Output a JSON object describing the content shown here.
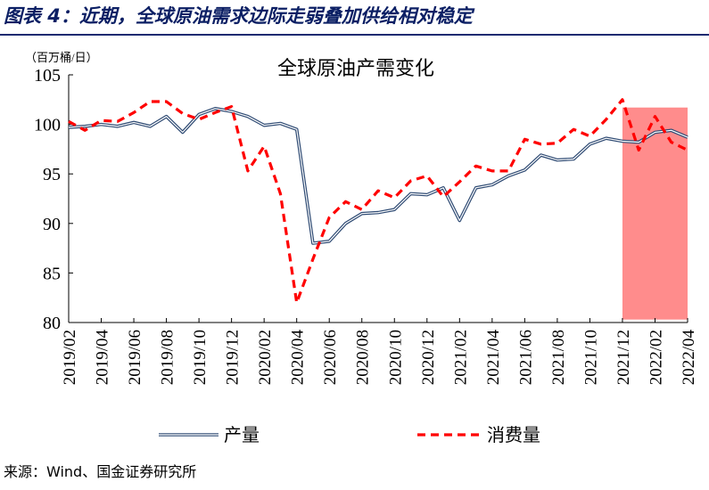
{
  "figure": {
    "title": "图表 4：近期，全球原油需求边际走弱叠加供给相对稳定",
    "source": "来源：Wind、国金证券研究所"
  },
  "colors": {
    "figure_title": "#0b1f64",
    "production": "#2e4a73",
    "consumption": "#ff0000",
    "highlight": "#ff8c8c"
  },
  "chart_data": {
    "type": "line",
    "title": "全球原油产需变化",
    "unit_label": "（百万桶/日）",
    "xlabel": "",
    "ylabel": "",
    "ylim": [
      80,
      105
    ],
    "yticks": [
      80,
      85,
      90,
      95,
      100,
      105
    ],
    "grid": false,
    "legend_position": "bottom",
    "x": [
      "2019/02",
      "2019/03",
      "2019/04",
      "2019/05",
      "2019/06",
      "2019/07",
      "2019/08",
      "2019/09",
      "2019/10",
      "2019/11",
      "2019/12",
      "2020/01",
      "2020/02",
      "2020/03",
      "2020/04",
      "2020/05",
      "2020/06",
      "2020/07",
      "2020/08",
      "2020/09",
      "2020/10",
      "2020/11",
      "2020/12",
      "2021/01",
      "2021/02",
      "2021/03",
      "2021/04",
      "2021/05",
      "2021/06",
      "2021/07",
      "2021/08",
      "2021/09",
      "2021/10",
      "2021/11",
      "2021/12",
      "2022/01",
      "2022/02",
      "2022/03",
      "2022/04"
    ],
    "xtick_labels": [
      "2019/02",
      "2019/04",
      "2019/06",
      "2019/08",
      "2019/10",
      "2019/12",
      "2020/02",
      "2020/04",
      "2020/06",
      "2020/08",
      "2020/10",
      "2020/12",
      "2021/02",
      "2021/04",
      "2021/06",
      "2021/08",
      "2021/10",
      "2021/12",
      "2022/02",
      "2022/04"
    ],
    "series": [
      {
        "name": "产量",
        "style": "double-line",
        "values": [
          99.7,
          99.8,
          100.0,
          99.8,
          100.2,
          99.8,
          100.8,
          99.2,
          101.0,
          101.6,
          101.3,
          100.8,
          99.9,
          100.1,
          99.5,
          88.0,
          88.2,
          90.0,
          91.0,
          91.1,
          91.4,
          93.0,
          92.9,
          93.6,
          90.3,
          93.6,
          93.9,
          94.8,
          95.4,
          96.9,
          96.4,
          96.5,
          98.0,
          98.6,
          98.3,
          98.2,
          99.2,
          99.4,
          98.7
        ]
      },
      {
        "name": "消费量",
        "style": "dashed",
        "values": [
          100.3,
          99.4,
          100.4,
          100.3,
          101.2,
          102.3,
          102.3,
          101.1,
          100.5,
          101.2,
          101.8,
          95.3,
          97.8,
          93.0,
          82.0,
          86.4,
          90.6,
          92.2,
          91.4,
          93.3,
          92.6,
          94.3,
          94.8,
          92.7,
          94.2,
          95.8,
          95.3,
          95.3,
          98.5,
          98.0,
          98.1,
          99.5,
          98.8,
          100.5,
          102.5,
          97.4,
          100.8,
          98.2,
          97.4
        ]
      }
    ],
    "highlight_range": [
      "2021/12",
      "2022/04"
    ]
  }
}
